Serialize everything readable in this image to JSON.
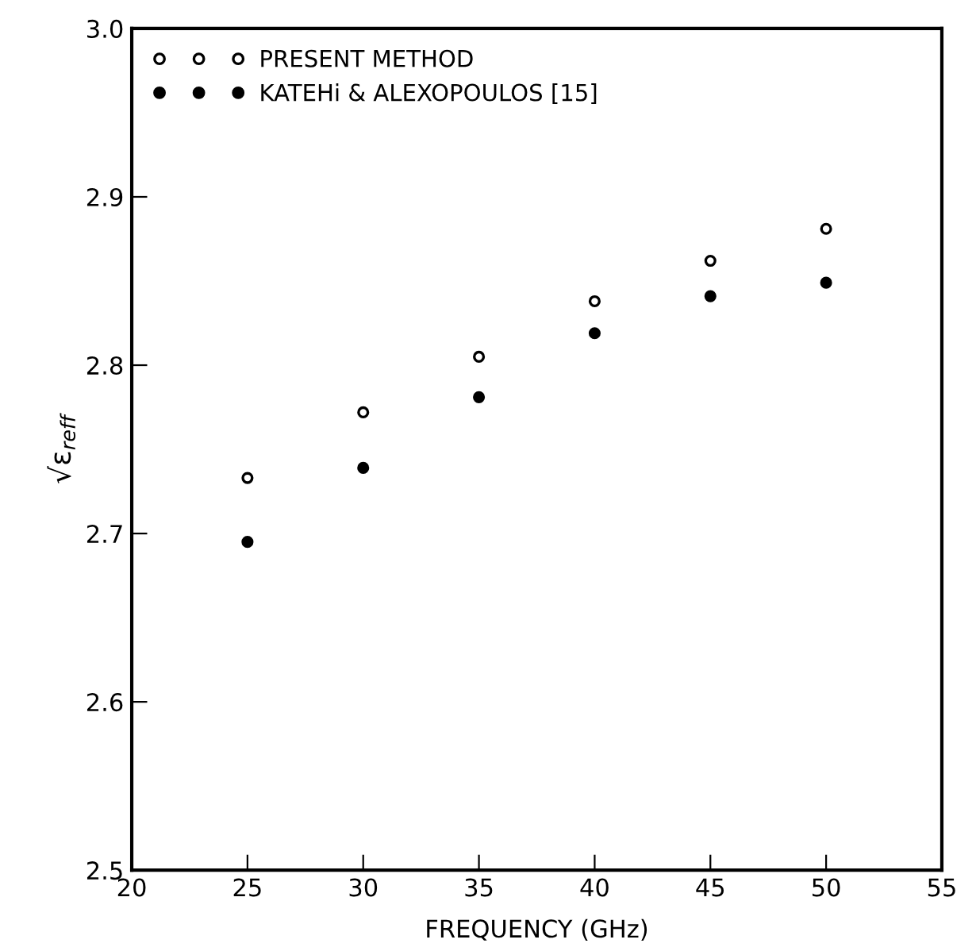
{
  "chart_data": {
    "type": "scatter",
    "xlabel": "FREQUENCY (GHz)",
    "ylabel": "√ε$_{reff}$",
    "x": [
      25,
      30,
      35,
      40,
      45,
      50
    ],
    "series": [
      {
        "name": "PRESENT METHOD",
        "color": "#000000",
        "marker": "open circle",
        "values": [
          2.733,
          2.772,
          2.805,
          2.838,
          2.862,
          2.881
        ]
      },
      {
        "name": "KATEHi & ALEXOPOULOS [15]",
        "color": "#000000",
        "marker": "circle",
        "values": [
          2.695,
          2.739,
          2.781,
          2.819,
          2.841,
          2.849
        ]
      }
    ],
    "xlim": [
      20,
      55
    ],
    "xticks": [
      20,
      25,
      30,
      35,
      40,
      45,
      50,
      55
    ],
    "ylim": [
      2.5,
      3.0
    ],
    "yticks": [
      {
        "value": 2.5,
        "label": "2.5"
      },
      {
        "value": 2.6,
        "label": "2.6"
      },
      {
        "value": 2.7,
        "label": "2.7"
      },
      {
        "value": 2.8,
        "label": "2.8"
      },
      {
        "value": 2.9,
        "label": "2.9"
      },
      {
        "value": 3.0,
        "label": "3.0"
      }
    ],
    "grid": false,
    "legend": "top left"
  }
}
